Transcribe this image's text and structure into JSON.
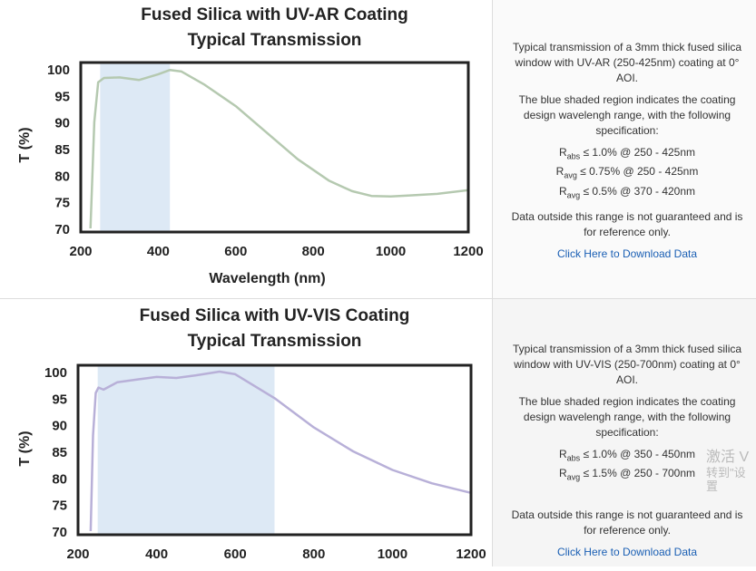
{
  "charts_panels": [
    {
      "description": "Typical transmission of a 3mm thick fused silica window with UV-AR (250-425nm) coating at 0° AOI.",
      "shading_note": "The blue shaded region indicates the coating design wavelengh range, with the following specification:",
      "specs": [
        {
          "r": "R",
          "sub": "abs",
          "text": " ≤ 1.0% @ 250 - 425nm"
        },
        {
          "r": "R",
          "sub": "avg",
          "text": " ≤ 0.75% @ 250 - 425nm"
        },
        {
          "r": "R",
          "sub": "avg",
          "text": " ≤ 0.5% @ 370 - 420nm"
        }
      ],
      "disclaimer": "Data outside this range is not guaranteed and is for reference only.",
      "download_link": "Click Here to Download Data"
    },
    {
      "description": "Typical transmission of a 3mm thick fused silica window with UV-VIS (250-700nm) coating at 0° AOI.",
      "shading_note": "The blue shaded region indicates the coating design wavelengh range, with the following specification:",
      "specs": [
        {
          "r": "R",
          "sub": "abs",
          "text": " ≤ 1.0% @ 350 - 450nm"
        },
        {
          "r": "R",
          "sub": "avg",
          "text": " ≤ 1.5% @ 250 - 700nm"
        }
      ],
      "disclaimer": "Data outside this range is not guaranteed and is for reference only.",
      "download_link": "Click Here to Download Data"
    }
  ],
  "watermark": {
    "line1": "激活 V",
    "line2": "转到\"设置"
  },
  "chart_data": [
    {
      "type": "line",
      "title": [
        "Fused Silica with UV-AR Coating",
        "Typical Transmission"
      ],
      "xlabel": "Wavelength (nm)",
      "ylabel": "T (%)",
      "xlim": [
        200,
        1200
      ],
      "ylim": [
        70,
        100
      ],
      "xticks": [
        200,
        400,
        600,
        800,
        1000,
        1200
      ],
      "yticks": [
        70,
        75,
        80,
        85,
        90,
        95,
        100
      ],
      "shaded_range": [
        250,
        430
      ],
      "shade_color": "#dde9f5",
      "line_color": "#b5c9b0",
      "x": [
        225,
        235,
        245,
        260,
        300,
        350,
        400,
        430,
        460,
        520,
        600,
        680,
        760,
        840,
        900,
        950,
        1000,
        1050,
        1120,
        1200
      ],
      "y": [
        70,
        90,
        97.5,
        98.3,
        98.4,
        97.9,
        99,
        99.8,
        99.5,
        97,
        93,
        88,
        83,
        79,
        77,
        76.1,
        76,
        76.2,
        76.5,
        77.2
      ]
    },
    {
      "type": "line",
      "title": [
        "Fused Silica with UV-VIS Coating",
        "Typical Transmission"
      ],
      "xlabel": "",
      "ylabel": "T (%)",
      "xlim": [
        200,
        1200
      ],
      "ylim": [
        70,
        100
      ],
      "xticks": [
        200,
        400,
        600,
        800,
        1000,
        1200
      ],
      "yticks": [
        70,
        75,
        80,
        85,
        90,
        95,
        100
      ],
      "shaded_range": [
        250,
        700
      ],
      "shade_color": "#dde9f5",
      "line_color": "#b8b0d8",
      "x": [
        232,
        238,
        245,
        252,
        265,
        300,
        350,
        400,
        450,
        500,
        560,
        600,
        700,
        800,
        900,
        1000,
        1100,
        1200
      ],
      "y": [
        70,
        88,
        96,
        97,
        96.6,
        98,
        98.5,
        99,
        98.8,
        99.3,
        100,
        99.5,
        95,
        89.5,
        85,
        81.5,
        79,
        77.2
      ]
    }
  ]
}
